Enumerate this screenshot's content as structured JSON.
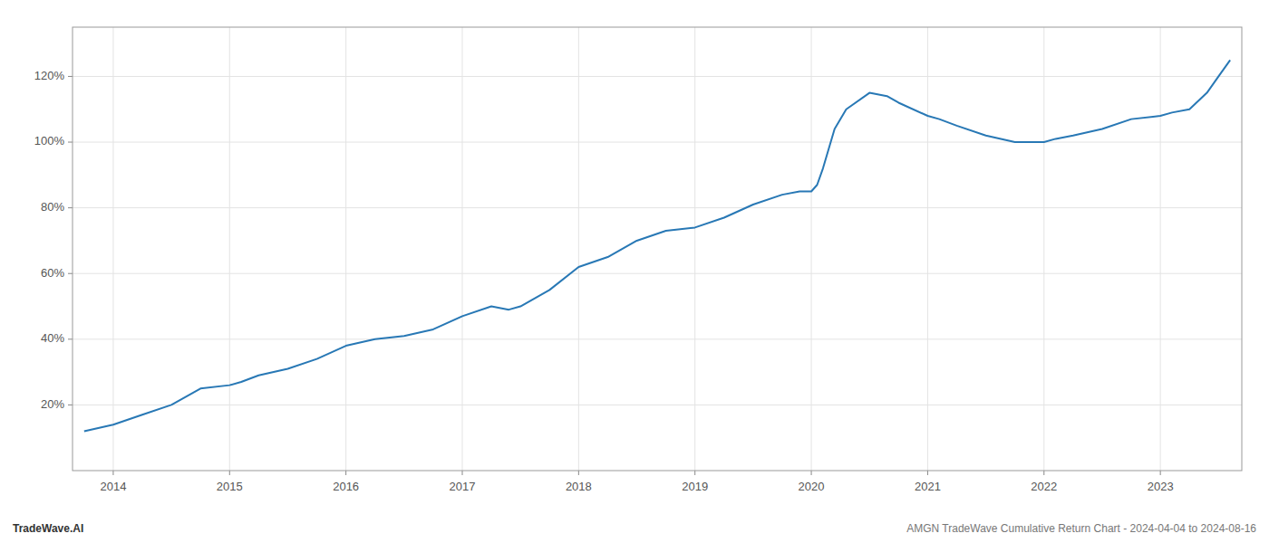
{
  "chart_data": {
    "type": "line",
    "x": [
      2013.75,
      2014.0,
      2014.25,
      2014.5,
      2014.75,
      2015.0,
      2015.1,
      2015.25,
      2015.5,
      2015.75,
      2016.0,
      2016.25,
      2016.5,
      2016.75,
      2017.0,
      2017.25,
      2017.4,
      2017.5,
      2017.75,
      2018.0,
      2018.25,
      2018.5,
      2018.75,
      2019.0,
      2019.25,
      2019.5,
      2019.75,
      2019.9,
      2020.0,
      2020.05,
      2020.1,
      2020.15,
      2020.2,
      2020.3,
      2020.5,
      2020.65,
      2020.75,
      2021.0,
      2021.1,
      2021.25,
      2021.5,
      2021.75,
      2022.0,
      2022.1,
      2022.25,
      2022.5,
      2022.75,
      2023.0,
      2023.1,
      2023.25,
      2023.4,
      2023.5,
      2023.6
    ],
    "values": [
      12,
      14,
      17,
      20,
      25,
      26,
      27,
      29,
      31,
      34,
      38,
      40,
      41,
      43,
      47,
      50,
      49,
      50,
      55,
      62,
      65,
      70,
      73,
      74,
      77,
      81,
      84,
      85,
      85,
      87,
      92,
      98,
      104,
      110,
      115,
      114,
      112,
      108,
      107,
      105,
      102,
      100,
      100,
      101,
      102,
      104,
      107,
      108,
      109,
      110,
      115,
      120,
      125
    ],
    "color": "#2878b5",
    "xlim": [
      2013.65,
      2023.7
    ],
    "ylim": [
      0,
      135
    ],
    "xticks": [
      2014,
      2015,
      2016,
      2017,
      2018,
      2019,
      2020,
      2021,
      2022,
      2023
    ],
    "yticks": [
      {
        "value": 20,
        "label": "20%"
      },
      {
        "value": 40,
        "label": "40%"
      },
      {
        "value": 60,
        "label": "60%"
      },
      {
        "value": 80,
        "label": "80%"
      },
      {
        "value": 100,
        "label": "100%"
      },
      {
        "value": 120,
        "label": "120%"
      }
    ],
    "grid": true,
    "annotations": [
      "TradeWave.AI",
      "AMGN TradeWave Cumulative Return Chart - 2024-04-04 to 2024-08-16"
    ]
  }
}
